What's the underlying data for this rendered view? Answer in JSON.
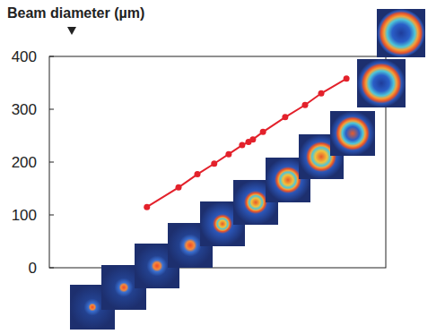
{
  "chart_data": {
    "type": "line",
    "y_label": "Beam diameter (µm)",
    "x": [
      29,
      38.4,
      44,
      49,
      53.3,
      57.3,
      59.2,
      60.5,
      63.5,
      70.1,
      76,
      80.8,
      88.3
    ],
    "values": [
      115,
      152,
      177,
      197,
      215,
      232,
      238,
      243,
      257,
      285,
      308,
      330,
      358
    ],
    "xlim": [
      0,
      100
    ],
    "ylim": [
      0,
      400
    ],
    "yticks": [
      0,
      100,
      200,
      300,
      400
    ],
    "tick_labels": "y",
    "grid": false,
    "color": "#e3212b",
    "marker": "circle",
    "line_style": "solid"
  }
}
